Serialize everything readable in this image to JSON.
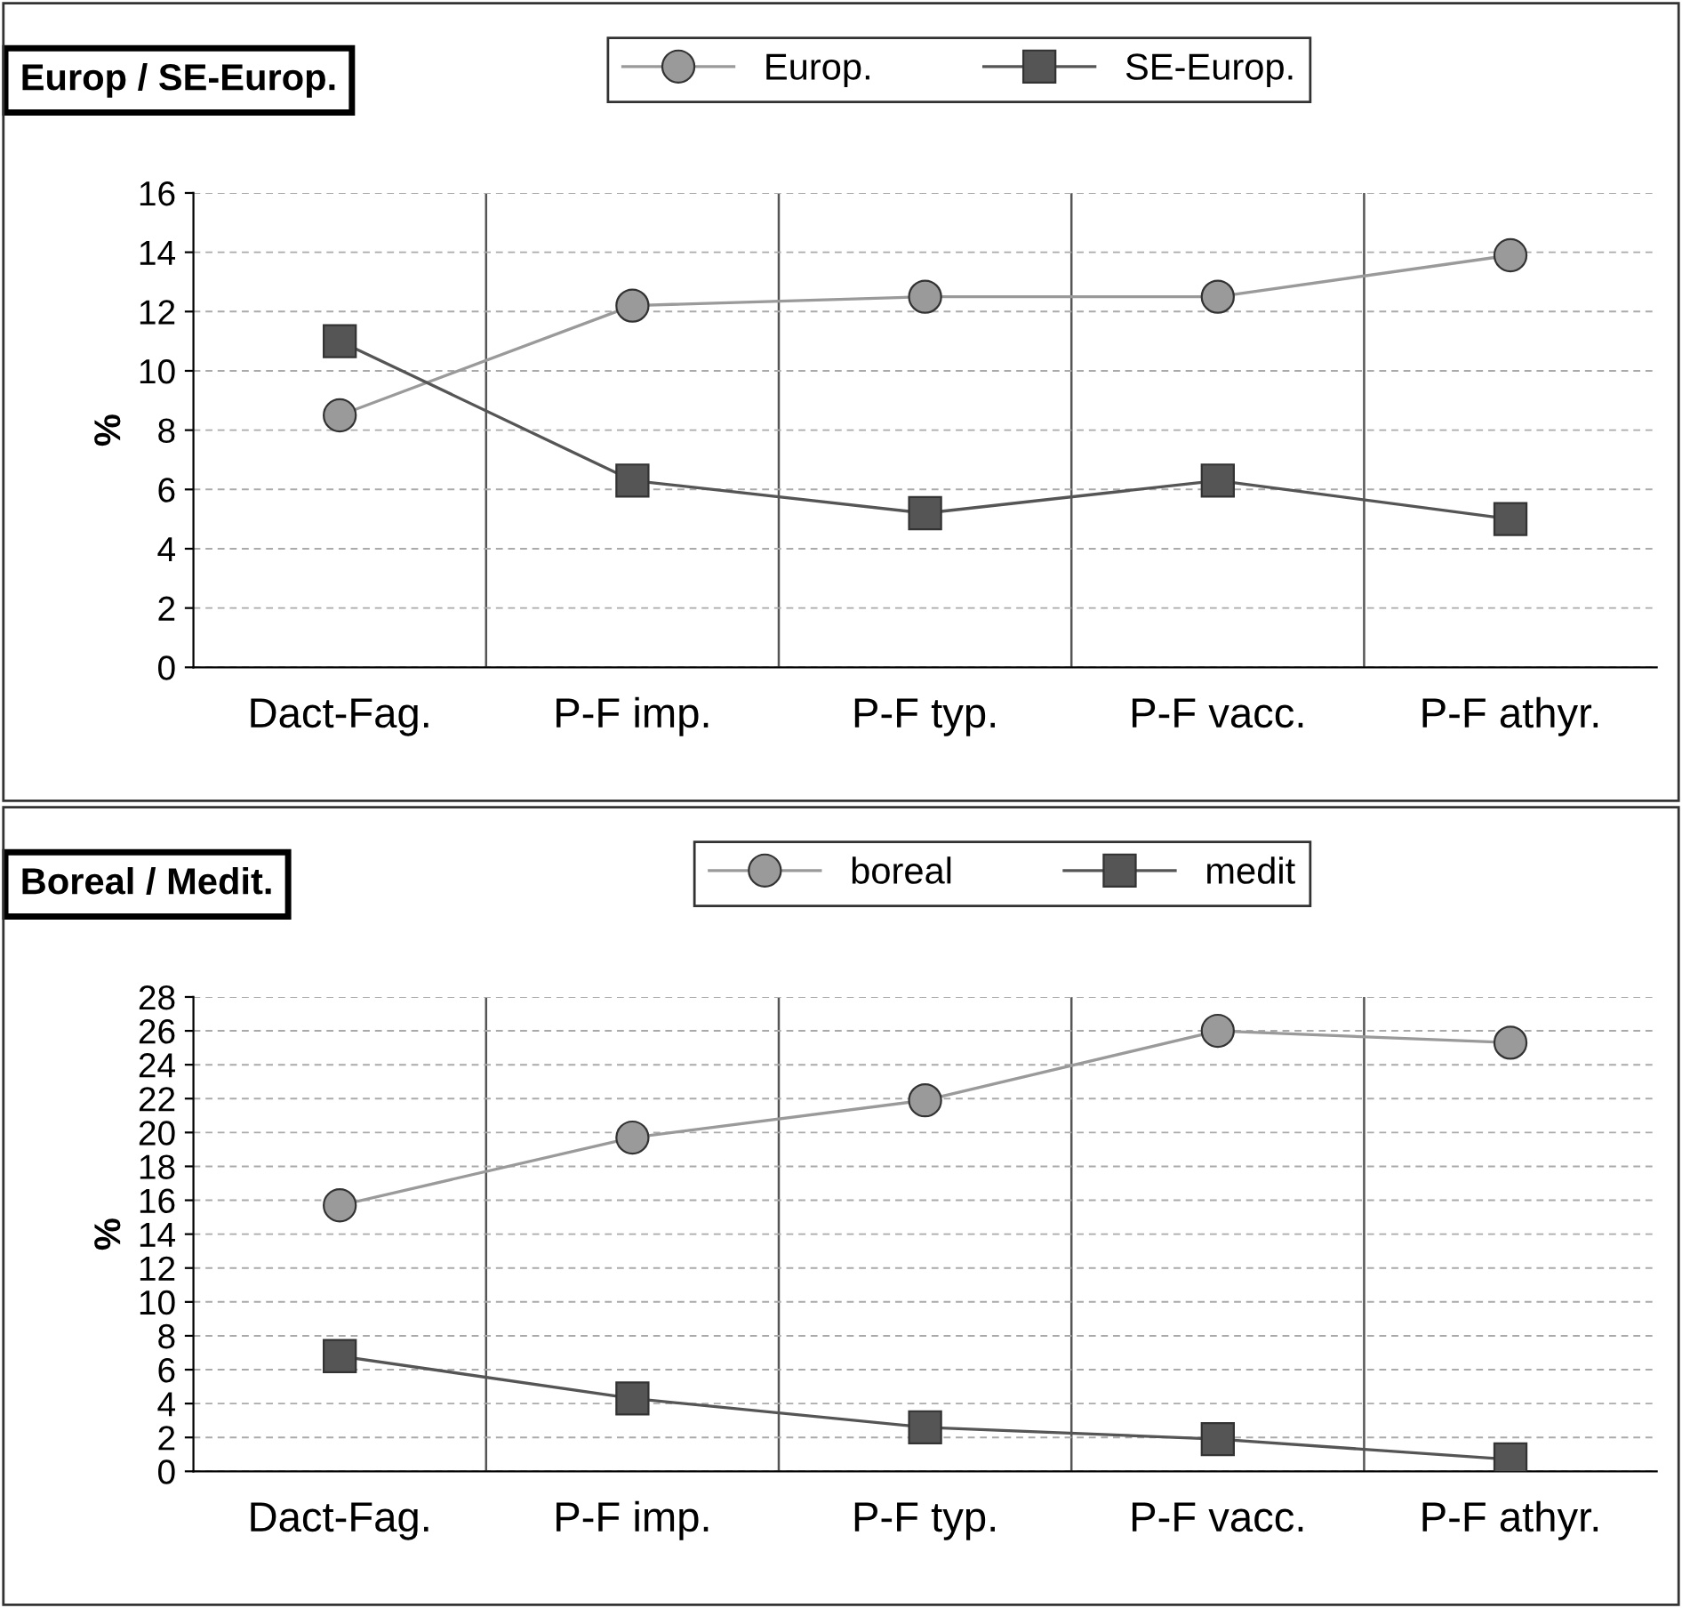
{
  "chart_data": [
    {
      "type": "line",
      "title": "Europ / SE-Europ.",
      "ylabel": "%",
      "categories": [
        "Dact-Fag.",
        "P-F imp.",
        "P-F typ.",
        "P-F vacc.",
        "P-F athyr."
      ],
      "series": [
        {
          "name": "Europ.",
          "color": "#9a9a9a",
          "marker": "circle",
          "values": [
            8.5,
            12.2,
            12.5,
            12.5,
            13.9
          ]
        },
        {
          "name": "SE-Europ.",
          "color": "#555555",
          "marker": "square",
          "values": [
            11.0,
            6.3,
            5.2,
            6.3,
            5.0
          ]
        }
      ],
      "ylim": [
        0,
        16
      ],
      "yticks": [
        0,
        2,
        4,
        6,
        8,
        10,
        12,
        14,
        16
      ],
      "grid": true,
      "legend": "top right",
      "line_style": "solid"
    },
    {
      "type": "line",
      "title": "Boreal / Medit.",
      "ylabel": "%",
      "categories": [
        "Dact-Fag.",
        "P-F imp.",
        "P-F typ.",
        "P-F vacc.",
        "P-F athyr."
      ],
      "series": [
        {
          "name": "boreal",
          "color": "#9a9a9a",
          "marker": "circle",
          "values": [
            15.7,
            19.7,
            21.9,
            26.0,
            25.3
          ]
        },
        {
          "name": "medit",
          "color": "#555555",
          "marker": "square",
          "values": [
            6.8,
            4.3,
            2.6,
            1.9,
            0.7
          ]
        }
      ],
      "ylim": [
        0,
        28
      ],
      "yticks": [
        0,
        2,
        4,
        6,
        8,
        10,
        12,
        14,
        16,
        18,
        20,
        22,
        24,
        26,
        28
      ],
      "grid": true,
      "legend": "top right",
      "line_style": "solid"
    }
  ]
}
